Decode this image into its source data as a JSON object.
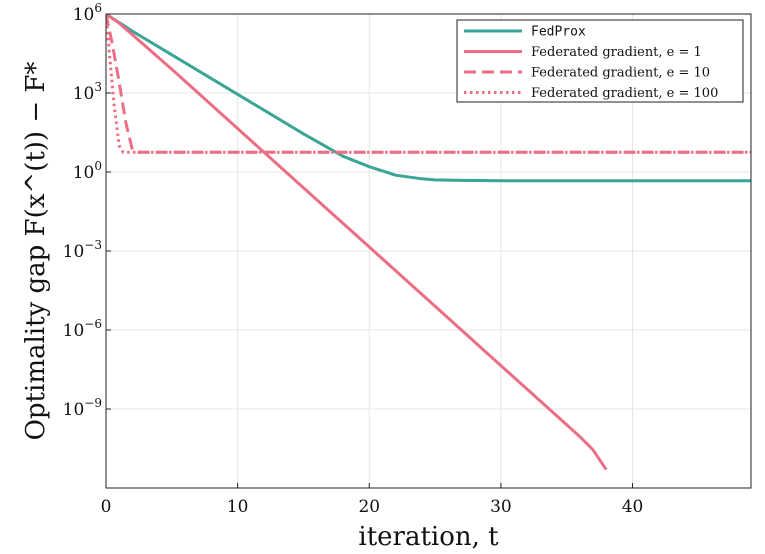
{
  "chart_data": {
    "type": "line",
    "xlabel": "iteration, t",
    "ylabel": "Optimality gap F(x^(t)) − F*",
    "xlim": [
      0,
      49
    ],
    "ylim_log10": [
      -12,
      6
    ],
    "y_scale": "log",
    "grid": true,
    "legend_position": "top-right",
    "x_ticks": [
      0,
      10,
      20,
      30,
      40
    ],
    "y_ticks": [
      {
        "exp": 6,
        "base": "10",
        "sup": "6"
      },
      {
        "exp": 3,
        "base": "10",
        "sup": "3"
      },
      {
        "exp": 0,
        "base": "10",
        "sup": "0"
      },
      {
        "exp": -3,
        "base": "10",
        "sup": "−3"
      },
      {
        "exp": -6,
        "base": "10",
        "sup": "−6"
      },
      {
        "exp": -9,
        "base": "10",
        "sup": "−9"
      }
    ],
    "series": [
      {
        "name": "FedProx",
        "color": "#3aa596",
        "dash": "solid",
        "x": [
          0,
          2,
          5,
          10,
          15,
          18,
          20,
          22,
          24,
          25,
          27,
          30,
          35,
          40,
          45,
          49
        ],
        "log10_y": [
          6.0,
          5.35,
          4.45,
          2.95,
          1.45,
          0.6,
          0.2,
          -0.12,
          -0.26,
          -0.3,
          -0.32,
          -0.33,
          -0.33,
          -0.33,
          -0.33,
          -0.33
        ]
      },
      {
        "name": "Federated gradient, e = 1",
        "color": "#eb6e85",
        "dash": "solid",
        "x": [
          0,
          1,
          5,
          10,
          15,
          20,
          25,
          30,
          35,
          36,
          37,
          38
        ],
        "log10_y": [
          6.0,
          5.65,
          3.9,
          1.65,
          -0.6,
          -2.85,
          -5.1,
          -7.35,
          -9.6,
          -10.05,
          -10.55,
          -11.3
        ]
      },
      {
        "name": "Federated gradient, e = 10",
        "color": "#eb6e85",
        "dash": "dashed",
        "x": [
          0,
          0.5,
          1,
          1.5,
          2,
          2.5,
          49
        ],
        "log10_y": [
          6.0,
          4.8,
          3.4,
          1.9,
          0.85,
          0.75,
          0.75
        ]
      },
      {
        "name": "Federated gradient, e = 100",
        "color": "#eb6e85",
        "dash": "dotted",
        "x": [
          0,
          0.3,
          0.6,
          1.0,
          1.3,
          49
        ],
        "log10_y": [
          6.0,
          4.3,
          2.6,
          1.0,
          0.75,
          0.75
        ]
      }
    ]
  },
  "legend": [
    {
      "label": "FedProx",
      "mono": true,
      "color": "#3aa596",
      "dash": "solid"
    },
    {
      "label": "Federated gradient, e = 1",
      "mono": false,
      "color": "#eb6e85",
      "dash": "solid"
    },
    {
      "label": "Federated gradient, e = 10",
      "mono": false,
      "color": "#eb6e85",
      "dash": "dashed"
    },
    {
      "label": "Federated gradient, e = 100",
      "mono": false,
      "color": "#eb6e85",
      "dash": "dotted"
    }
  ]
}
